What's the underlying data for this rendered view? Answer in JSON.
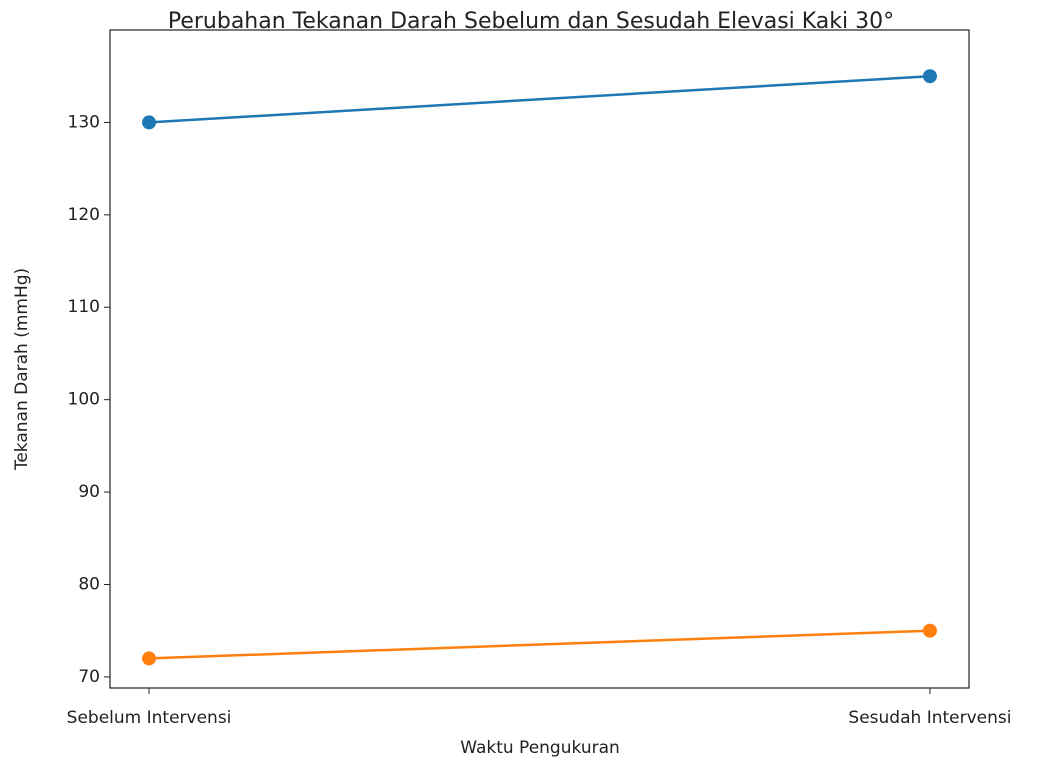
{
  "chart_data": {
    "type": "line",
    "title": "Perubahan Tekanan Darah Sebelum dan Sesudah Elevasi Kaki 30°",
    "xlabel": "Waktu Pengukuran",
    "ylabel": "Tekanan Darah (mmHg)",
    "categories": [
      "Sebelum Intervensi",
      "Sesudah Intervensi"
    ],
    "series": [
      {
        "color": "#1f77b4",
        "values": [
          130,
          135
        ]
      },
      {
        "color": "#ff7f0e",
        "values": [
          72,
          75
        ]
      }
    ],
    "ylim": [
      68.8,
      140
    ],
    "yticks": [
      70,
      80,
      90,
      100,
      110,
      120,
      130
    ],
    "grid": false
  }
}
